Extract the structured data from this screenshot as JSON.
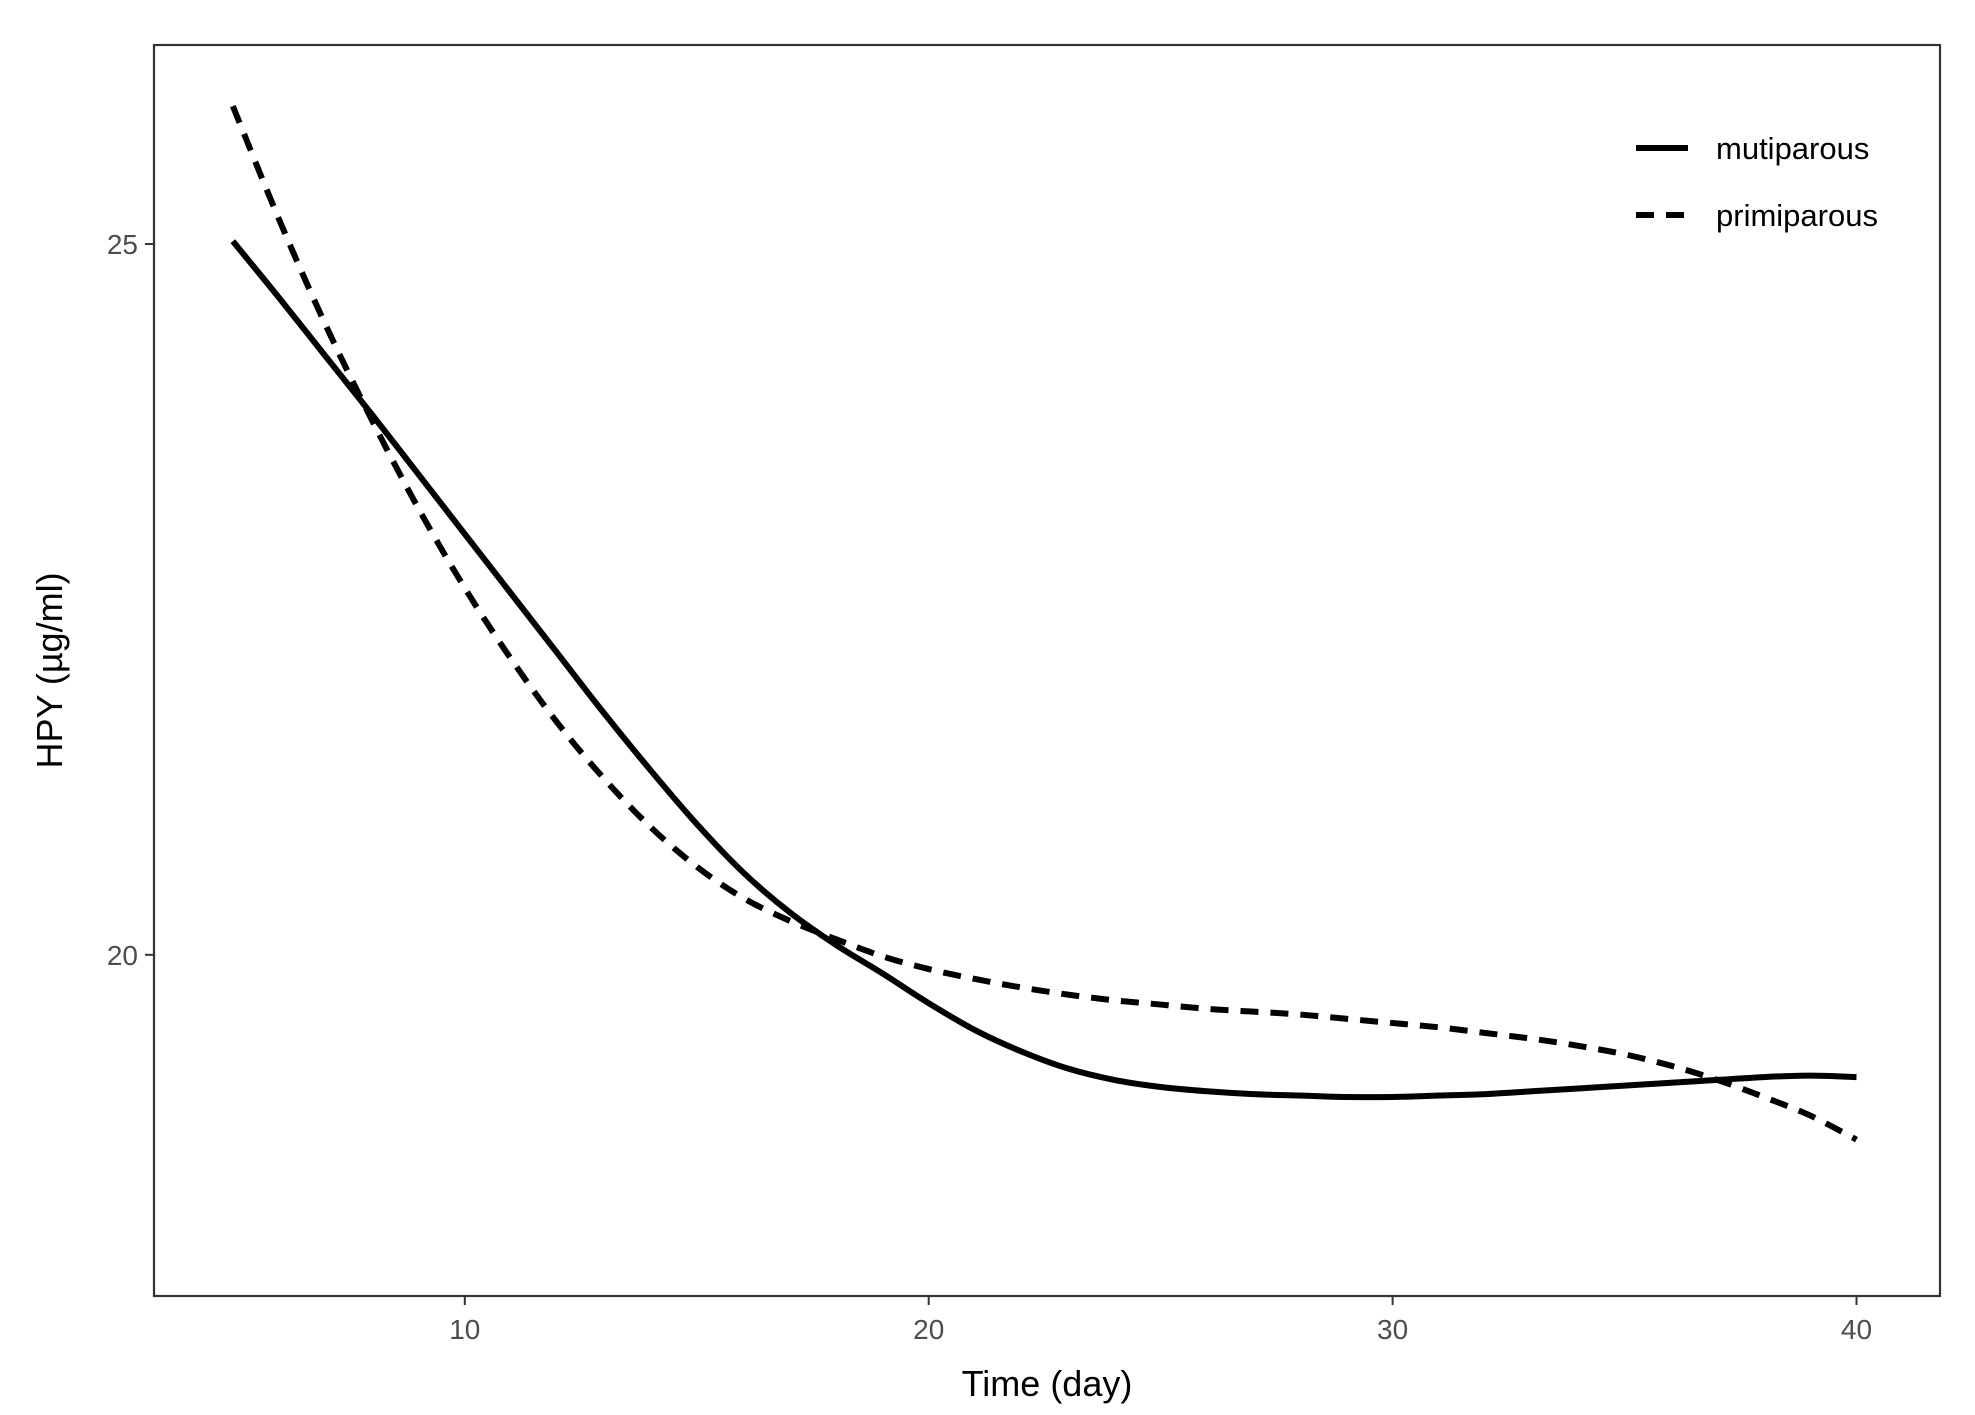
{
  "chart_data": {
    "type": "line",
    "title": "",
    "xlabel": "Time (day)",
    "ylabel": "HPY (µg/ml)",
    "xlim": [
      3.3,
      41.8
    ],
    "ylim": [
      17.6,
      26.4
    ],
    "xticks": [
      10,
      20,
      30,
      40
    ],
    "xtick_labels": [
      "10",
      "20",
      "30",
      "40"
    ],
    "yticks": [
      20,
      25
    ],
    "ytick_labels": [
      "20",
      "25"
    ],
    "grid": false,
    "legend_position": "top-right",
    "series": [
      {
        "name": "mutiparous",
        "line_style": "solid",
        "color": "#000000",
        "x": [
          5,
          6,
          7,
          8,
          9,
          10,
          11,
          12,
          13,
          14,
          15,
          16,
          17,
          18,
          19,
          20,
          21,
          22,
          23,
          24,
          25,
          26,
          27,
          28,
          29,
          30,
          31,
          32,
          33,
          34,
          35,
          36,
          37,
          38,
          39,
          40
        ],
        "y": [
          25.02,
          24.62,
          24.21,
          23.8,
          23.38,
          22.96,
          22.54,
          22.12,
          21.7,
          21.3,
          20.92,
          20.58,
          20.3,
          20.07,
          19.87,
          19.66,
          19.47,
          19.32,
          19.2,
          19.12,
          19.07,
          19.04,
          19.02,
          19.01,
          19.0,
          19.0,
          19.01,
          19.02,
          19.04,
          19.06,
          19.08,
          19.1,
          19.12,
          19.14,
          19.15,
          19.14
        ]
      },
      {
        "name": "primiparous",
        "line_style": "dashed",
        "color": "#000000",
        "x": [
          5,
          6,
          7,
          8,
          9,
          10,
          11,
          12,
          13,
          14,
          15,
          16,
          17,
          18,
          19,
          20,
          21,
          22,
          23,
          24,
          25,
          26,
          27,
          28,
          29,
          30,
          31,
          32,
          33,
          34,
          35,
          36,
          37,
          38,
          39,
          40
        ],
        "y": [
          25.97,
          25.17,
          24.43,
          23.76,
          23.14,
          22.58,
          22.08,
          21.63,
          21.24,
          20.9,
          20.62,
          20.4,
          20.24,
          20.11,
          19.99,
          19.9,
          19.83,
          19.77,
          19.72,
          19.68,
          19.65,
          19.62,
          19.6,
          19.58,
          19.55,
          19.52,
          19.49,
          19.45,
          19.41,
          19.36,
          19.3,
          19.22,
          19.12,
          19.0,
          18.87,
          18.7
        ]
      }
    ]
  }
}
